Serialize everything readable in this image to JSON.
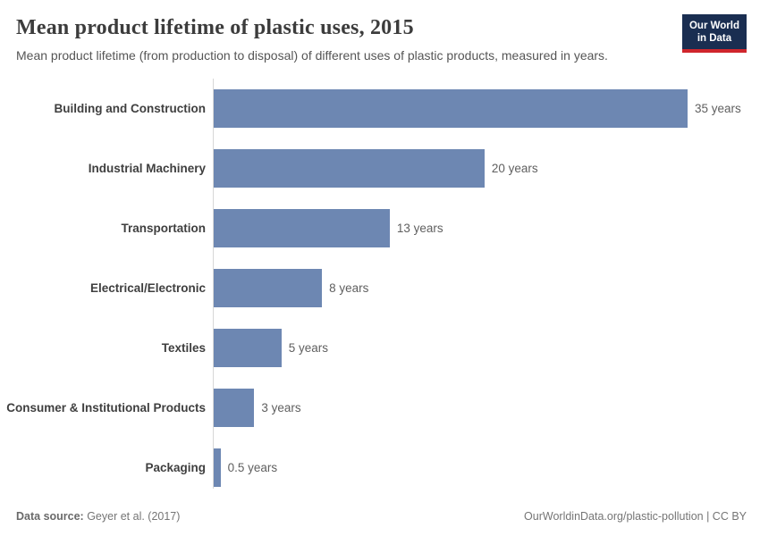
{
  "header": {
    "title": "Mean product lifetime of plastic uses, 2015",
    "subtitle": "Mean product lifetime (from production to disposal) of different uses of plastic products, measured in years.",
    "logo": {
      "line1": "Our World",
      "line2": "in Data"
    }
  },
  "chart_data": {
    "type": "bar",
    "orientation": "horizontal",
    "title": "Mean product lifetime of plastic uses, 2015",
    "categories": [
      "Building and Construction",
      "Industrial Machinery",
      "Transportation",
      "Electrical/Electronic",
      "Textiles",
      "Consumer & Institutional Products",
      "Packaging"
    ],
    "values": [
      35,
      20,
      13,
      8,
      5,
      3,
      0.5
    ],
    "value_labels": [
      "35 years",
      "20 years",
      "13 years",
      "8 years",
      "5 years",
      "3 years",
      "0.5 years"
    ],
    "xlabel": "",
    "ylabel": "",
    "xlim": [
      0,
      35
    ],
    "grid": false,
    "legend": false,
    "bar_color": "#6d87b2"
  },
  "footer": {
    "datasource_label": "Data source:",
    "datasource_value": " Geyer et al. (2017)",
    "link": "OurWorldinData.org/plastic-pollution | CC BY"
  },
  "colors": {
    "bar": "#6d87b2",
    "logo_navy": "#1a2e51",
    "logo_red": "#d0262c",
    "axis_line": "#d7d7d7",
    "title_text": "#3c3c3c"
  }
}
